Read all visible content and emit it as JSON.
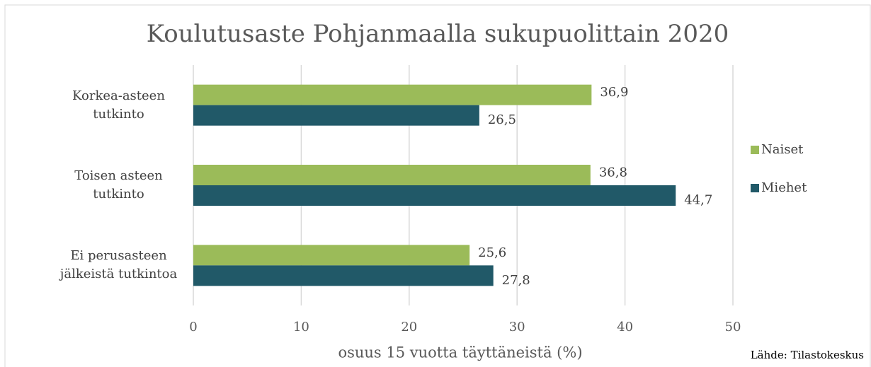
{
  "chart_data": {
    "type": "hbar",
    "title": "Koulutusaste Pohjanmaalla sukupuolittain 2020",
    "x_label": "osuus 15 vuotta täyttäneistä (%)",
    "source": "Lähde: Tilastokeskus",
    "categories": [
      "Korkea-asteen tutkinto",
      "Toisen asteen tutkinto",
      "Ei perusasteen jälkeistä tutkintoa"
    ],
    "series": [
      {
        "name": "Naiset",
        "color": "#9bbb59",
        "values": [
          36.9,
          36.8,
          25.6
        ],
        "value_labels": [
          "36,9",
          "36,8",
          "25,6"
        ]
      },
      {
        "name": "Miehet",
        "color": "#215968",
        "values": [
          26.5,
          44.7,
          27.8
        ],
        "value_labels": [
          "26,5",
          "44,7",
          "27,8"
        ]
      }
    ],
    "xlim": [
      0,
      50
    ],
    "xticks": [
      0,
      10,
      20,
      30,
      40,
      50
    ],
    "grid": true,
    "legend": "right"
  }
}
